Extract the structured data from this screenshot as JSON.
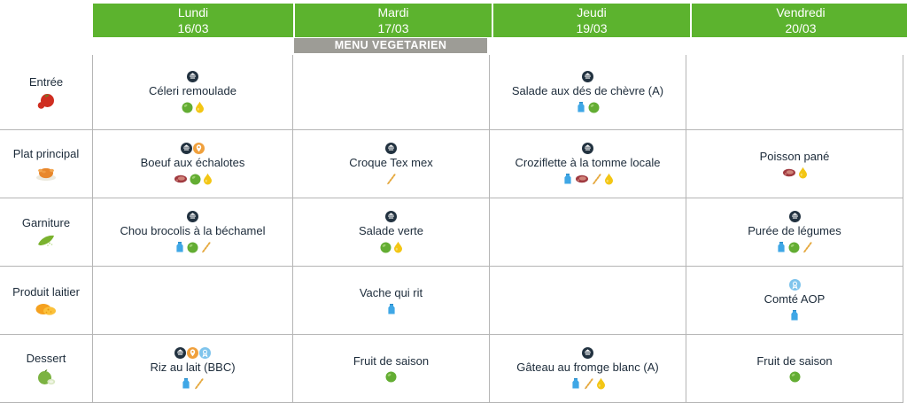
{
  "columns": [
    {
      "label": "Lundi",
      "date": "16/03"
    },
    {
      "label": "Mardi",
      "date": "17/03"
    },
    {
      "label": "Jeudi",
      "date": "19/03"
    },
    {
      "label": "Vendredi",
      "date": "20/03"
    }
  ],
  "banner": {
    "text": "MENU VEGETARIEN",
    "column": "Mardi"
  },
  "rows": [
    {
      "category": "Entrée",
      "category_icon": "tomato",
      "cells": [
        {
          "badges": [
            "fait-maison"
          ],
          "dish": "Céleri remoulade",
          "nutrients": [
            "fruit-vegetable",
            "fat"
          ]
        },
        {},
        {
          "badges": [
            "fait-maison"
          ],
          "dish": "Salade aux dés de chèvre (A)",
          "nutrients": [
            "dairy",
            "fruit-vegetable"
          ]
        },
        {}
      ]
    },
    {
      "category": "Plat principal",
      "category_icon": "roast-chicken",
      "cells": [
        {
          "badges": [
            "fait-maison",
            "local-product"
          ],
          "dish": "Boeuf aux échalotes",
          "nutrients": [
            "meat",
            "fruit-vegetable",
            "fat"
          ]
        },
        {
          "badges": [
            "fait-maison"
          ],
          "dish": "Croque Tex mex",
          "nutrients": [
            "cereal"
          ]
        },
        {
          "badges": [
            "fait-maison"
          ],
          "dish": "Croziflette à la tomme locale",
          "nutrients": [
            "dairy",
            "meat",
            "cereal",
            "fat"
          ]
        },
        {
          "badges": [],
          "dish": "Poisson pané",
          "nutrients": [
            "meat",
            "fat"
          ]
        }
      ]
    },
    {
      "category": "Garniture",
      "category_icon": "pea-pod",
      "cells": [
        {
          "badges": [
            "fait-maison"
          ],
          "dish": "Chou brocolis à la béchamel",
          "nutrients": [
            "dairy",
            "fruit-vegetable",
            "cereal"
          ]
        },
        {
          "badges": [
            "fait-maison"
          ],
          "dish": "Salade verte",
          "nutrients": [
            "fruit-vegetable",
            "fat"
          ]
        },
        {},
        {
          "badges": [
            "fait-maison"
          ],
          "dish": "Purée de légumes",
          "nutrients": [
            "dairy",
            "fruit-vegetable",
            "cereal"
          ]
        }
      ]
    },
    {
      "category": "Produit laitier",
      "category_icon": "cheese",
      "cells": [
        {},
        {
          "badges": [],
          "dish": "Vache qui rit",
          "nutrients": [
            "dairy"
          ]
        },
        {},
        {
          "badges": [
            "quality-label"
          ],
          "dish": "Comté AOP",
          "nutrients": [
            "dairy"
          ]
        }
      ]
    },
    {
      "category": "Dessert",
      "category_icon": "apple",
      "cells": [
        {
          "badges": [
            "fait-maison",
            "local-product",
            "quality-label"
          ],
          "dish": "Riz au lait (BBC)",
          "nutrients": [
            "dairy",
            "cereal"
          ]
        },
        {
          "badges": [],
          "dish": "Fruit de saison",
          "nutrients": [
            "fruit-vegetable"
          ]
        },
        {
          "badges": [
            "fait-maison"
          ],
          "dish": "Gâteau au fromge blanc (A)",
          "nutrients": [
            "dairy",
            "cereal",
            "fat"
          ]
        },
        {
          "badges": [],
          "dish": "Fruit de saison",
          "nutrients": [
            "fruit-vegetable"
          ]
        }
      ]
    }
  ],
  "colors": {
    "header_green": "#5cb32e",
    "banner_gray": "#9d9c96",
    "text_dark": "#1c2b3a",
    "grid_border": "#b5b5b5",
    "badge_dark_navy": "#223240",
    "badge_orange": "#f0a03c",
    "badge_light_blue": "#7fc4ec",
    "dairy_blue": "#3fa7e6",
    "meat_red": "#a03a40",
    "cereal_gold": "#e6a93f",
    "fruit_green": "#63ad33",
    "fat_yellow": "#f3c614"
  }
}
